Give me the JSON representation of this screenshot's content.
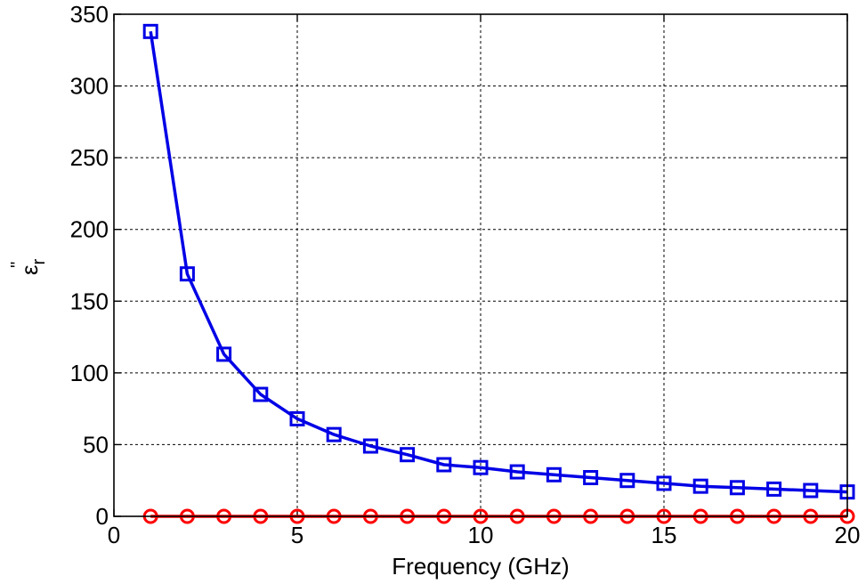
{
  "chart_data": {
    "type": "line",
    "title": "",
    "xlabel": "Frequency (GHz)",
    "ylabel": "ε",
    "ylabel_subscript": "r",
    "ylabel_superscript": "\"",
    "xlim": [
      0,
      20
    ],
    "ylim": [
      0,
      350
    ],
    "xticks": [
      "0",
      "5",
      "10",
      "15",
      "20"
    ],
    "yticks": [
      "0",
      "50",
      "100",
      "150",
      "200",
      "250",
      "300",
      "350"
    ],
    "grid": true,
    "x": [
      1,
      2,
      3,
      4,
      5,
      6,
      7,
      8,
      9,
      10,
      11,
      12,
      13,
      14,
      15,
      16,
      17,
      18,
      19,
      20
    ],
    "series": [
      {
        "marker": "square",
        "color": "#0000e6",
        "values": [
          338,
          169,
          113,
          85,
          68,
          57,
          49,
          43,
          36,
          34,
          31,
          29,
          27,
          25,
          23,
          21,
          20,
          19,
          18,
          17
        ]
      },
      {
        "marker": "circle",
        "color": "#ff0000",
        "values": [
          0,
          0,
          0,
          0,
          0,
          0,
          0,
          0,
          0,
          0,
          0,
          0,
          0,
          0,
          0,
          0,
          0,
          0,
          0,
          0
        ]
      }
    ]
  }
}
